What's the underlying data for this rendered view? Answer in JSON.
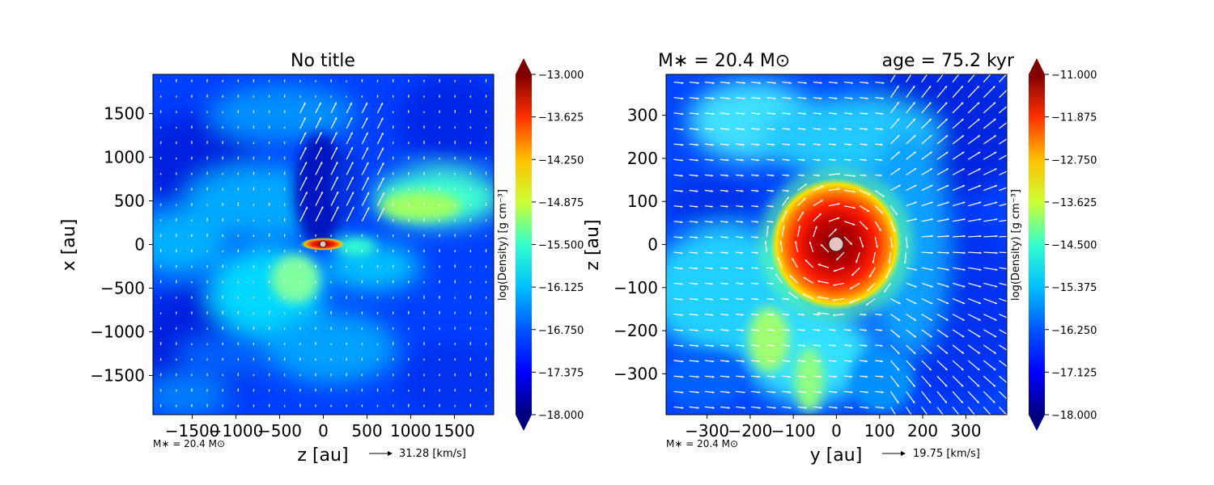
{
  "colormap": [
    "#00007f",
    "#0000ff",
    "#007fff",
    "#00ffff",
    "#7fff7f",
    "#ffff00",
    "#ff7f00",
    "#ff0000",
    "#7f0000"
  ],
  "vector_color": "#ffffff",
  "star_color": "#e6c2c2",
  "chart_data": [
    {
      "type": "heatmap",
      "title": "No title",
      "xlabel": "z [au]",
      "ylabel": "x [au]",
      "xlim": [
        -1950,
        1950
      ],
      "ylim": [
        -1950,
        1950
      ],
      "xticks": [
        -1500,
        -1000,
        -500,
        0,
        500,
        1000,
        1500
      ],
      "xtick_labels": [
        "−1500",
        "−1000",
        "−500",
        "0",
        "500",
        "1000",
        "1500"
      ],
      "yticks": [
        -1500,
        -1000,
        -500,
        0,
        500,
        1000,
        1500
      ],
      "ytick_labels": [
        "−1500",
        "−1000",
        "−500",
        "0",
        "500",
        "1000",
        "1500"
      ],
      "colorbar": {
        "label": "log(Density) [g cm⁻³]",
        "min": -18.0,
        "max": -13.0,
        "ticks": [
          -13.0,
          -13.625,
          -14.25,
          -14.875,
          -15.5,
          -16.125,
          -16.75,
          -17.375,
          -18.0
        ],
        "tick_labels": [
          "−13.000",
          "−13.625",
          "−14.250",
          "−14.875",
          "−15.500",
          "−16.125",
          "−16.750",
          "−17.375",
          "−18.000"
        ]
      },
      "footnote": "M∗ = 20.4 M⊙",
      "vector_key": "31.28 [km/s]",
      "structures": [
        {
          "x": 0,
          "y": 0,
          "value": -13.1
        },
        {
          "x": -180,
          "y": 10,
          "value": -13.9
        },
        {
          "x": 180,
          "y": 10,
          "value": -13.9
        },
        {
          "x": 80,
          "y": 700,
          "value": -17.8
        },
        {
          "x": 1300,
          "y": 500,
          "value": -15.3
        },
        {
          "x": -1300,
          "y": 100,
          "value": -15.9
        },
        {
          "x": -250,
          "y": -400,
          "value": -15.1
        }
      ]
    },
    {
      "type": "heatmap",
      "title_left": "M∗ = 20.4 M⊙",
      "title_right": "age = 75.2 kyr",
      "xlabel": "y [au]",
      "ylabel": "z [au]",
      "xlim": [
        -395,
        395
      ],
      "ylim": [
        -395,
        395
      ],
      "xticks": [
        -300,
        -200,
        -100,
        0,
        100,
        200,
        300
      ],
      "xtick_labels": [
        "−300",
        "−200",
        "−100",
        "0",
        "100",
        "200",
        "300"
      ],
      "yticks": [
        -300,
        -200,
        -100,
        0,
        100,
        200,
        300
      ],
      "ytick_labels": [
        "−300",
        "−200",
        "−100",
        "0",
        "100",
        "200",
        "300"
      ],
      "colorbar": {
        "label": "log(Density) [g cm⁻³]",
        "min": -18.0,
        "max": -11.0,
        "ticks": [
          -11.0,
          -11.875,
          -12.75,
          -13.625,
          -14.5,
          -15.375,
          -16.25,
          -17.125,
          -18.0
        ],
        "tick_labels": [
          "−11.000",
          "−11.875",
          "−12.750",
          "−13.625",
          "−14.500",
          "−15.375",
          "−16.250",
          "−17.125",
          "−18.000"
        ]
      },
      "footnote": "M∗ = 20.4 M⊙",
      "vector_key": "19.75 [km/s]",
      "structures": [
        {
          "x": 0,
          "y": 0,
          "value": -11.2
        },
        {
          "x": -160,
          "y": -220,
          "value": -14.6
        },
        {
          "x": -40,
          "y": -330,
          "value": -14.9
        },
        {
          "x": 300,
          "y": 250,
          "value": -17.3
        },
        {
          "x": -250,
          "y": 300,
          "value": -16.5
        }
      ]
    }
  ]
}
